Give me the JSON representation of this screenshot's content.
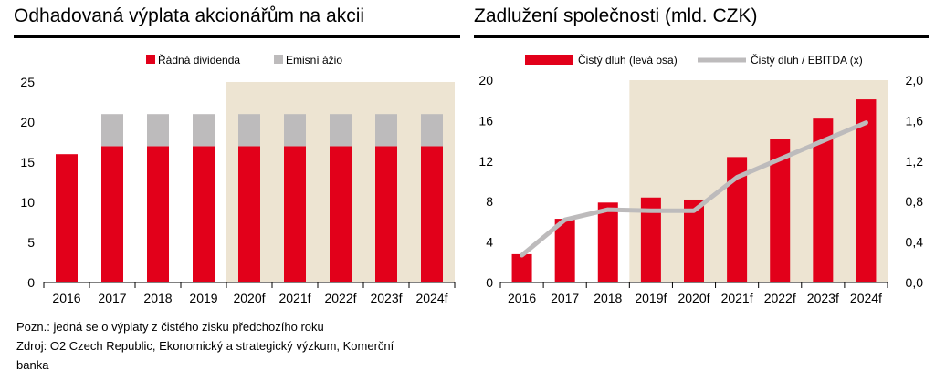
{
  "left": {
    "title": "Odhadovaná výplata akcionářům na akcii"
  },
  "right": {
    "title": "Zadlužení společnosti (mld. CZK)"
  },
  "notes": {
    "line1": "Pozn.: jedná se o výplaty z čistého zisku předchozího roku",
    "line2": "Zdroj: O2 Czech Republic, Ekonomický a strategický výzkum, Komerční",
    "line3": "banka"
  },
  "chart_data": [
    {
      "type": "bar",
      "stacked": true,
      "title": "Odhadovaná výplata akcionářům na akcii",
      "categories": [
        "2016",
        "2017",
        "2018",
        "2019",
        "2020f",
        "2021f",
        "2022f",
        "2023f",
        "2024f"
      ],
      "series": [
        {
          "name": "Řádná dividenda",
          "color": "#e2001a",
          "values": [
            16,
            17,
            17,
            17,
            17,
            17,
            17,
            17,
            17
          ]
        },
        {
          "name": "Emisní ážio",
          "color": "#bdbbbc",
          "values": [
            0,
            4,
            4,
            4,
            4,
            4,
            4,
            4,
            4
          ]
        }
      ],
      "ylim": [
        0,
        25
      ],
      "yticks": [
        "0",
        "5",
        "10",
        "15",
        "20",
        "25"
      ],
      "forecast_shading": {
        "from_category": "2020f",
        "color": "#ede4d2"
      },
      "legend_position": "top",
      "grid": false
    },
    {
      "type": "bar+line",
      "title": "Zadlužení společnosti (mld. CZK)",
      "categories": [
        "2016",
        "2017",
        "2018",
        "2019f",
        "2020f",
        "2021f",
        "2022f",
        "2023f",
        "2024f"
      ],
      "series": [
        {
          "name": "Čistý dluh (levá osa)",
          "type": "bar",
          "axis": "left",
          "color": "#e2001a",
          "values": [
            2.8,
            6.3,
            7.9,
            8.4,
            8.2,
            12.4,
            14.2,
            16.2,
            18.1
          ]
        },
        {
          "name": "Čistý dluh / EBITDA (x)",
          "type": "line",
          "axis": "right",
          "color": "#bdbbbc",
          "values": [
            0.27,
            0.62,
            0.72,
            0.71,
            0.71,
            1.04,
            1.22,
            1.4,
            1.58
          ]
        }
      ],
      "ylim_left": [
        0,
        20
      ],
      "yticks_left": [
        "0",
        "4",
        "8",
        "12",
        "16",
        "20"
      ],
      "ylim_right": [
        0,
        2.0
      ],
      "yticks_right": [
        "0,0",
        "0,4",
        "0,8",
        "1,2",
        "1,6",
        "2,0"
      ],
      "forecast_shading": {
        "from_category": "2019f",
        "color": "#ede4d2"
      },
      "legend_position": "top",
      "grid": false
    }
  ]
}
